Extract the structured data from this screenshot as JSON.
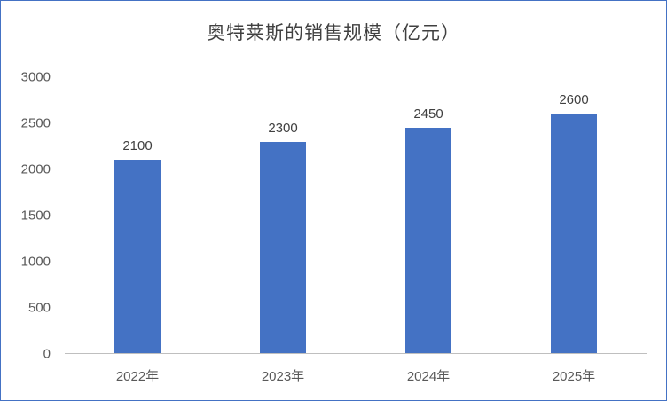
{
  "title": "奥特莱斯的销售规模（亿元）",
  "colors": {
    "bar": "#4472C4",
    "axis_line": "#BFBFBF",
    "title_text": "#404040",
    "tick_text": "#595959",
    "frame_border": "#4472C4"
  },
  "chart_data": {
    "type": "bar",
    "title": "奥特莱斯的销售规模（亿元）",
    "categories": [
      "2022年",
      "2023年",
      "2024年",
      "2025年"
    ],
    "values": [
      2100,
      2300,
      2450,
      2600
    ],
    "data_labels": [
      "2100",
      "2300",
      "2450",
      "2600"
    ],
    "xlabel": "",
    "ylabel": "",
    "ylim": [
      0,
      3000
    ],
    "yticks": [
      0,
      500,
      1000,
      1500,
      2000,
      2500,
      3000
    ],
    "grid": false,
    "legend": "none",
    "bar_color": "#4472C4"
  }
}
